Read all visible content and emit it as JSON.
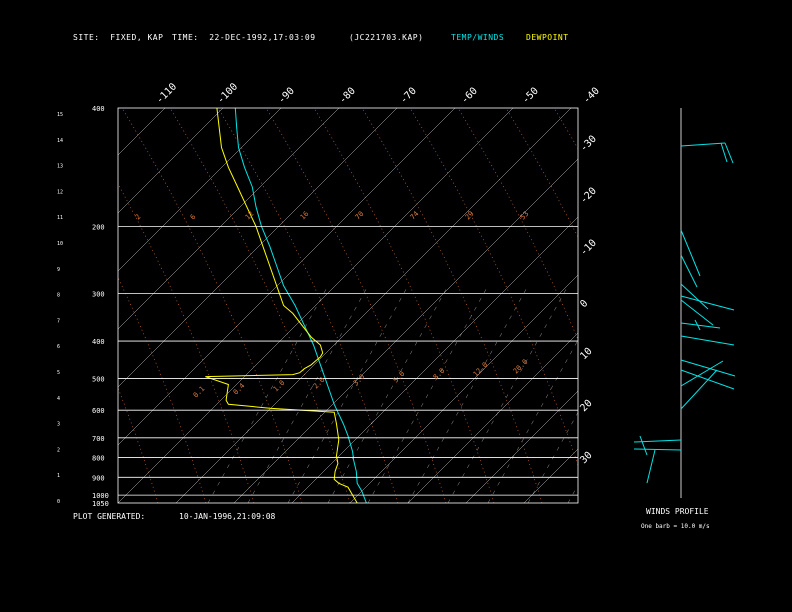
{
  "header": {
    "site_label": "SITE:",
    "site_value": "FIXED, KAP",
    "time_label": "TIME:",
    "time_value": "22-DEC-1992,17:03:09",
    "file": "(JC221703.KAP)",
    "legend_temp": "TEMP/WINDS",
    "legend_dew": "DEWPOINT"
  },
  "footer": {
    "plot_generated_label": "PLOT GENERATED:",
    "plot_generated_value": "10-JAN-1996,21:09:08"
  },
  "winds_profile": {
    "title": "WINDS PROFILE",
    "note": "One barb = 10.0 m/s"
  },
  "colors": {
    "background": "#000000",
    "temperature": "#00e5e5",
    "dewpoint": "#ffff00",
    "grid": "#ffffff",
    "isotherm_label": "#5aa0ff",
    "mixing_ratio": "#e07a3a",
    "wind_barb": "#00e5e5"
  },
  "chart_data": {
    "type": "line",
    "title": "",
    "pressure_levels_hpa": [
      400,
      200,
      300,
      400,
      500,
      600,
      700,
      800,
      900,
      1000,
      1050
    ],
    "pressure_axis_labels": [
      "400",
      "200",
      "300",
      "400",
      "500",
      "600",
      "700",
      "800",
      "900",
      "1000",
      "1050"
    ],
    "height_km_ticks": [
      "15",
      "14",
      "13",
      "12",
      "11",
      "10",
      "9",
      "8",
      "7",
      "6",
      "5",
      "4",
      "3",
      "2",
      "1",
      "0"
    ],
    "top_temperature_ticks": [
      "-110",
      "-100",
      "-90",
      "-80",
      "-70",
      "-60",
      "-50",
      "-40"
    ],
    "right_temperature_ticks": [
      "-30",
      "-20",
      "-10",
      "0",
      "10",
      "20",
      "30"
    ],
    "mixing_ratio_labels": [
      "0.1",
      "0.4",
      "1.0",
      "2.0",
      "3.0",
      "5.0",
      "8.0",
      "12.0",
      "20.0"
    ],
    "upper_labels": [
      "2",
      "6",
      "12",
      "16",
      "70",
      "74",
      "29",
      "53"
    ],
    "series": [
      {
        "name": "TEMP/WINDS",
        "x": [
          0.255,
          0.258,
          0.262,
          0.275,
          0.292,
          0.3,
          0.312,
          0.33,
          0.345,
          0.36,
          0.385,
          0.405,
          0.425,
          0.44,
          0.455,
          0.47,
          0.482,
          0.49,
          0.5,
          0.505,
          0.51,
          0.512,
          0.518,
          0.52,
          0.53,
          0.54
        ],
        "y": [
          0.0,
          0.05,
          0.1,
          0.15,
          0.2,
          0.25,
          0.3,
          0.35,
          0.4,
          0.45,
          0.5,
          0.55,
          0.6,
          0.65,
          0.7,
          0.75,
          0.78,
          0.8,
          0.83,
          0.85,
          0.87,
          0.89,
          0.92,
          0.95,
          0.97,
          1.0
        ]
      },
      {
        "name": "DEWPOINT",
        "x": [
          0.215,
          0.22,
          0.225,
          0.24,
          0.26,
          0.28,
          0.3,
          0.315,
          0.33,
          0.345,
          0.36,
          0.38,
          0.4,
          0.42,
          0.44,
          0.445,
          0.44,
          0.43,
          0.42,
          0.405,
          0.395,
          0.38,
          0.19,
          0.24,
          0.235,
          0.24,
          0.33,
          0.47,
          0.475,
          0.48,
          0.475,
          0.478,
          0.472,
          0.47,
          0.48,
          0.5,
          0.51,
          0.52
        ],
        "y": [
          0.0,
          0.05,
          0.1,
          0.15,
          0.2,
          0.25,
          0.3,
          0.35,
          0.4,
          0.45,
          0.5,
          0.52,
          0.55,
          0.58,
          0.6,
          0.62,
          0.63,
          0.64,
          0.65,
          0.66,
          0.67,
          0.675,
          0.68,
          0.7,
          0.74,
          0.75,
          0.76,
          0.77,
          0.8,
          0.84,
          0.88,
          0.9,
          0.92,
          0.94,
          0.95,
          0.96,
          0.98,
          1.0
        ]
      }
    ],
    "grid": true
  }
}
